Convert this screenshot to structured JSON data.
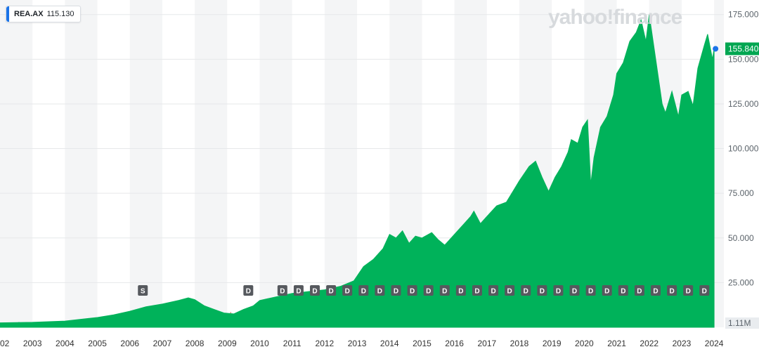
{
  "ticker": {
    "symbol": "REA.AX",
    "value": "115.130"
  },
  "watermark": "yahoo!finance",
  "colors": {
    "area": "#00b25a",
    "volume_up": "#5fcf95",
    "volume_down": "#c24d2c",
    "badge_bg": "#56595e",
    "last_price_label": "#00a651",
    "dot": "#1a73e8"
  },
  "chart_data": {
    "type": "area",
    "title": "",
    "xlabel": "",
    "ylabel": "",
    "x_tick_labels": [
      "02",
      "2003",
      "2004",
      "2005",
      "2006",
      "2007",
      "2008",
      "2009",
      "2010",
      "2011",
      "2012",
      "2013",
      "2014",
      "2015",
      "2016",
      "2017",
      "2018",
      "2019",
      "2020",
      "2021",
      "2022",
      "2023",
      "2024"
    ],
    "y_tick_labels": [
      "25.000",
      "50.000",
      "75.000",
      "100.000",
      "125.000",
      "150.000",
      "175.000"
    ],
    "ylim": [
      0,
      180
    ],
    "xlim": [
      2002.0,
      2024.3
    ],
    "grid": true,
    "last_price_label": "155.840",
    "volume_label": "1.11M",
    "series": [
      {
        "values": [
          [
            2002.0,
            2.5
          ],
          [
            2003.0,
            2.8
          ],
          [
            2004.0,
            3.5
          ],
          [
            2005.0,
            5.5
          ],
          [
            2005.5,
            7
          ],
          [
            2006.0,
            9
          ],
          [
            2006.5,
            11.5
          ],
          [
            2007.0,
            13
          ],
          [
            2007.5,
            15
          ],
          [
            2007.8,
            16.5
          ],
          [
            2008.0,
            15.5
          ],
          [
            2008.3,
            12
          ],
          [
            2008.6,
            10
          ],
          [
            2008.9,
            8
          ],
          [
            2009.2,
            7.5
          ],
          [
            2009.5,
            10
          ],
          [
            2009.8,
            12
          ],
          [
            2010.0,
            15
          ],
          [
            2010.5,
            17
          ],
          [
            2011.0,
            19
          ],
          [
            2011.5,
            20
          ],
          [
            2012.0,
            21
          ],
          [
            2012.5,
            23
          ],
          [
            2012.9,
            26
          ],
          [
            2013.2,
            34
          ],
          [
            2013.5,
            38
          ],
          [
            2013.8,
            44
          ],
          [
            2014.0,
            52
          ],
          [
            2014.2,
            50
          ],
          [
            2014.4,
            54
          ],
          [
            2014.6,
            47
          ],
          [
            2014.8,
            51
          ],
          [
            2015.0,
            50
          ],
          [
            2015.3,
            53
          ],
          [
            2015.5,
            49
          ],
          [
            2015.7,
            46
          ],
          [
            2015.9,
            50
          ],
          [
            2016.1,
            54
          ],
          [
            2016.3,
            58
          ],
          [
            2016.5,
            62
          ],
          [
            2016.6,
            65
          ],
          [
            2016.8,
            58
          ],
          [
            2017.0,
            62
          ],
          [
            2017.3,
            68
          ],
          [
            2017.6,
            70
          ],
          [
            2017.8,
            76
          ],
          [
            2018.0,
            82
          ],
          [
            2018.3,
            90
          ],
          [
            2018.5,
            93
          ],
          [
            2018.7,
            84
          ],
          [
            2018.9,
            76
          ],
          [
            2019.1,
            84
          ],
          [
            2019.3,
            90
          ],
          [
            2019.5,
            98
          ],
          [
            2019.6,
            105
          ],
          [
            2019.8,
            103
          ],
          [
            2019.95,
            112
          ],
          [
            2020.1,
            116
          ],
          [
            2020.2,
            80
          ],
          [
            2020.3,
            95
          ],
          [
            2020.5,
            112
          ],
          [
            2020.7,
            118
          ],
          [
            2020.9,
            130
          ],
          [
            2021.0,
            142
          ],
          [
            2021.2,
            148
          ],
          [
            2021.4,
            160
          ],
          [
            2021.6,
            165
          ],
          [
            2021.75,
            172
          ],
          [
            2021.9,
            160
          ],
          [
            2022.0,
            175
          ],
          [
            2022.2,
            150
          ],
          [
            2022.4,
            125
          ],
          [
            2022.5,
            120
          ],
          [
            2022.7,
            132
          ],
          [
            2022.9,
            118
          ],
          [
            2023.0,
            130
          ],
          [
            2023.2,
            132
          ],
          [
            2023.35,
            124
          ],
          [
            2023.5,
            145
          ],
          [
            2023.7,
            158
          ],
          [
            2023.8,
            164
          ],
          [
            2023.95,
            150
          ],
          [
            2024.0,
            156
          ]
        ]
      }
    ],
    "events": [
      {
        "x": 2006.4,
        "label": "S"
      },
      {
        "x": 2009.65,
        "label": "D"
      },
      {
        "x": 2010.7,
        "label": "D"
      },
      {
        "x": 2011.2,
        "label": "D"
      },
      {
        "x": 2011.7,
        "label": "D"
      },
      {
        "x": 2012.2,
        "label": "D"
      },
      {
        "x": 2012.7,
        "label": "D"
      },
      {
        "x": 2013.2,
        "label": "D"
      },
      {
        "x": 2013.7,
        "label": "D"
      },
      {
        "x": 2014.2,
        "label": "D"
      },
      {
        "x": 2014.7,
        "label": "D"
      },
      {
        "x": 2015.2,
        "label": "D"
      },
      {
        "x": 2015.7,
        "label": "D"
      },
      {
        "x": 2016.2,
        "label": "D"
      },
      {
        "x": 2016.7,
        "label": "D"
      },
      {
        "x": 2017.2,
        "label": "D"
      },
      {
        "x": 2017.7,
        "label": "D"
      },
      {
        "x": 2018.2,
        "label": "D"
      },
      {
        "x": 2018.7,
        "label": "D"
      },
      {
        "x": 2019.2,
        "label": "D"
      },
      {
        "x": 2019.7,
        "label": "D"
      },
      {
        "x": 2020.2,
        "label": "D"
      },
      {
        "x": 2020.7,
        "label": "D"
      },
      {
        "x": 2021.2,
        "label": "D"
      },
      {
        "x": 2021.7,
        "label": "D"
      },
      {
        "x": 2022.2,
        "label": "D"
      },
      {
        "x": 2022.7,
        "label": "D"
      },
      {
        "x": 2023.2,
        "label": "D"
      },
      {
        "x": 2023.7,
        "label": "D"
      }
    ]
  }
}
